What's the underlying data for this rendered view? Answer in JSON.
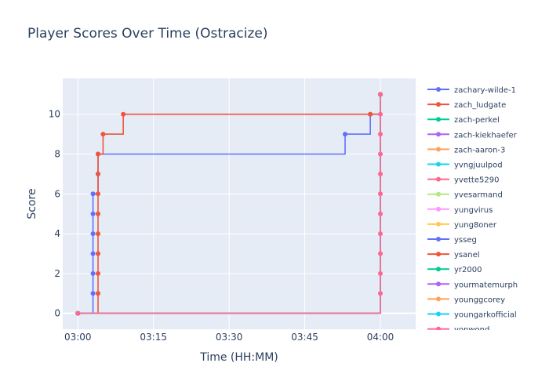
{
  "chart_data": {
    "type": "line",
    "line_shape": "step",
    "title": "Player Scores Over Time (Ostracize)",
    "xlabel": "Time (HH:MM)",
    "ylabel": "Score",
    "x_unit": "HH:MM",
    "xlim": [
      "02:57",
      "04:07"
    ],
    "ylim": [
      -0.8,
      11.8
    ],
    "x_ticks": [
      "03:00",
      "03:15",
      "03:30",
      "03:45",
      "04:00"
    ],
    "y_ticks": [
      0,
      2,
      4,
      6,
      8,
      10
    ],
    "grid": true,
    "legend_position": "right",
    "series": [
      {
        "name": "zachary-wilde-1",
        "color": "#636efa",
        "x": [
          "03:00",
          "03:03",
          "03:03",
          "03:03",
          "03:03",
          "03:03",
          "03:03",
          "03:04",
          "03:04",
          "03:53",
          "03:58",
          "04:00"
        ],
        "y": [
          0,
          1,
          2,
          3,
          4,
          5,
          6,
          7,
          8,
          9,
          10,
          11
        ]
      },
      {
        "name": "zach_ludgate",
        "color": "#ef553b",
        "x": [
          "03:00",
          "03:04",
          "03:04",
          "03:04",
          "03:04",
          "03:04",
          "03:04",
          "03:04",
          "03:04",
          "03:05",
          "03:09",
          "03:58",
          "04:00"
        ],
        "y": [
          0,
          1,
          2,
          3,
          4,
          5,
          6,
          7,
          8,
          9,
          10,
          10,
          11
        ]
      },
      {
        "name": "zach-perkel",
        "color": "#00cc96",
        "x": [
          "03:00",
          "04:00"
        ],
        "y": [
          0,
          11
        ]
      },
      {
        "name": "zach-kiekhaefer",
        "color": "#ab63fa",
        "x": [
          "03:00",
          "04:00"
        ],
        "y": [
          0,
          11
        ]
      },
      {
        "name": "zach-aaron-3",
        "color": "#ffa15a",
        "x": [
          "03:00",
          "04:00"
        ],
        "y": [
          0,
          11
        ]
      },
      {
        "name": "yvngjuulpod",
        "color": "#19d3f3",
        "x": [
          "03:00",
          "04:00"
        ],
        "y": [
          0,
          11
        ]
      },
      {
        "name": "yvette5290",
        "color": "#ff6692",
        "x": [
          "03:00",
          "04:00"
        ],
        "y": [
          0,
          11
        ]
      },
      {
        "name": "yvesarmand",
        "color": "#b6e880",
        "x": [
          "03:00",
          "04:00"
        ],
        "y": [
          0,
          11
        ]
      },
      {
        "name": "yungvirus",
        "color": "#ff97ff",
        "x": [
          "03:00",
          "04:00"
        ],
        "y": [
          0,
          11
        ]
      },
      {
        "name": "yung8oner",
        "color": "#fecb52",
        "x": [
          "03:00",
          "04:00"
        ],
        "y": [
          0,
          11
        ]
      },
      {
        "name": "ysseg",
        "color": "#636efa",
        "x": [
          "03:00",
          "04:00"
        ],
        "y": [
          0,
          11
        ]
      },
      {
        "name": "ysanel",
        "color": "#ef553b",
        "x": [
          "03:00",
          "04:00"
        ],
        "y": [
          0,
          11
        ]
      },
      {
        "name": "yr2000",
        "color": "#00cc96",
        "x": [
          "03:00",
          "04:00"
        ],
        "y": [
          0,
          11
        ]
      },
      {
        "name": "yourmatemurph",
        "color": "#ab63fa",
        "x": [
          "03:00",
          "04:00"
        ],
        "y": [
          0,
          11
        ]
      },
      {
        "name": "younggcorey",
        "color": "#ffa15a",
        "x": [
          "03:00",
          "04:00"
        ],
        "y": [
          0,
          11
        ]
      },
      {
        "name": "youngarkofficial",
        "color": "#19d3f3",
        "x": [
          "03:00",
          "04:00"
        ],
        "y": [
          0,
          11
        ]
      },
      {
        "name": "yonwond",
        "color": "#ff6692",
        "x": [
          "03:00",
          "04:00",
          "04:00",
          "04:00",
          "04:00",
          "04:00",
          "04:00",
          "04:00",
          "04:00",
          "04:00",
          "04:00",
          "04:00"
        ],
        "y": [
          0,
          1,
          2,
          3,
          4,
          5,
          6,
          7,
          8,
          9,
          10,
          11
        ]
      }
    ]
  }
}
